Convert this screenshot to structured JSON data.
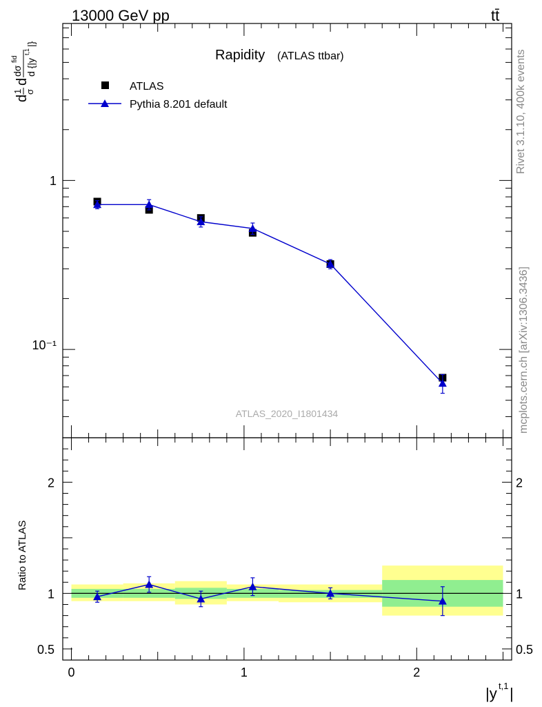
{
  "header": {
    "left": "13000 GeV pp",
    "right": "tt̄"
  },
  "side_labels": {
    "rivet": "Rivet 3.1.10,  400k events",
    "mcplots": "mcplots.cern.ch [arXiv:1306.3436]"
  },
  "ylabel_main": "d¹/σ dσ/d {|y^{t,1}|}",
  "ratio_ylabel": "Ratio to ATLAS",
  "xlabel": "|y^{t,1}|",
  "watermark": "ATLAS_2020_I1801434",
  "chart_data": [
    {
      "type": "scatter",
      "title": "Rapidity",
      "subtitle": "(ATLAS ttbar)",
      "yscale": "log",
      "xlim": [
        -0.05,
        2.55
      ],
      "ylim": [
        0.03,
        8.5
      ],
      "grid": false,
      "legend_position": "top-left",
      "y_tick_labels": [
        "10⁻¹",
        "1"
      ],
      "series": [
        {
          "name": "ATLAS",
          "marker": "square",
          "color": "#000000",
          "points": [
            {
              "x": 0.15,
              "xlo": 0.0,
              "xhi": 0.3,
              "y": 0.75,
              "err": 0.02
            },
            {
              "x": 0.45,
              "xlo": 0.3,
              "xhi": 0.6,
              "y": 0.67,
              "err": 0.02
            },
            {
              "x": 0.75,
              "xlo": 0.6,
              "xhi": 0.9,
              "y": 0.6,
              "err": 0.02
            },
            {
              "x": 1.05,
              "xlo": 0.9,
              "xhi": 1.2,
              "y": 0.49,
              "err": 0.015
            },
            {
              "x": 1.5,
              "xlo": 1.2,
              "xhi": 1.8,
              "y": 0.32,
              "err": 0.01
            },
            {
              "x": 2.15,
              "xlo": 1.8,
              "xhi": 2.5,
              "y": 0.068,
              "err": 0.003
            }
          ]
        },
        {
          "name": "Pythia 8.201 default",
          "marker": "triangle",
          "color": "#0000cc",
          "points": [
            {
              "x": 0.15,
              "y": 0.72,
              "err": 0.04
            },
            {
              "x": 0.45,
              "y": 0.72,
              "err": 0.05
            },
            {
              "x": 0.75,
              "y": 0.57,
              "err": 0.04
            },
            {
              "x": 1.05,
              "y": 0.52,
              "err": 0.04
            },
            {
              "x": 1.5,
              "y": 0.32,
              "err": 0.02
            },
            {
              "x": 2.15,
              "y": 0.063,
              "err": 0.008
            }
          ]
        }
      ]
    },
    {
      "type": "scatter",
      "ylabel": "Ratio to ATLAS",
      "xlabel": "|y^{t,1}|",
      "xlim": [
        -0.05,
        2.55
      ],
      "ylim": [
        0.4,
        2.4
      ],
      "x_ticks": [
        0,
        1,
        2
      ],
      "y_ticks": [
        0.5,
        1,
        2
      ],
      "bands": [
        {
          "xlo": 0.0,
          "xhi": 0.3,
          "inner": [
            0.96,
            1.04
          ],
          "outer": [
            0.93,
            1.08
          ]
        },
        {
          "xlo": 0.3,
          "xhi": 0.6,
          "inner": [
            0.96,
            1.04
          ],
          "outer": [
            0.93,
            1.09
          ]
        },
        {
          "xlo": 0.6,
          "xhi": 0.9,
          "inner": [
            0.95,
            1.05
          ],
          "outer": [
            0.9,
            1.11
          ]
        },
        {
          "xlo": 0.9,
          "xhi": 1.2,
          "inner": [
            0.96,
            1.04
          ],
          "outer": [
            0.93,
            1.08
          ]
        },
        {
          "xlo": 1.2,
          "xhi": 1.8,
          "inner": [
            0.96,
            1.03
          ],
          "outer": [
            0.92,
            1.08
          ]
        },
        {
          "xlo": 1.8,
          "xhi": 2.5,
          "inner": [
            0.88,
            1.12
          ],
          "outer": [
            0.8,
            1.25
          ]
        }
      ],
      "series": [
        {
          "name": "Pythia 8.201 default",
          "color": "#0000cc",
          "points": [
            {
              "x": 0.15,
              "y": 0.97,
              "err": 0.05
            },
            {
              "x": 0.45,
              "y": 1.08,
              "err": 0.07
            },
            {
              "x": 0.75,
              "y": 0.95,
              "err": 0.07
            },
            {
              "x": 1.05,
              "y": 1.06,
              "err": 0.08
            },
            {
              "x": 1.5,
              "y": 1.0,
              "err": 0.05
            },
            {
              "x": 2.15,
              "y": 0.93,
              "err": 0.13
            }
          ]
        }
      ],
      "colors": {
        "inner_band": "#90ee90",
        "outer_band": "#ffff90"
      }
    }
  ]
}
